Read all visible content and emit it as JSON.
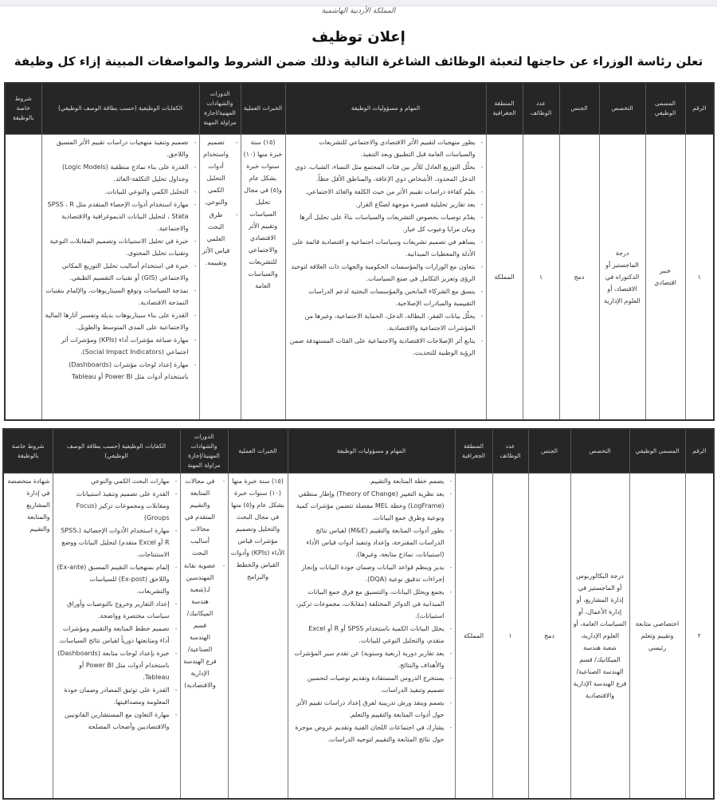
{
  "header": {
    "logo_text": "المملكة الأردنية الهاشمية",
    "title": "إعلان توظيف",
    "subtitle": "تعلن رئاسة الوزراء عن حاجتها لتعبئة الوظائف الشاغرة التالية وذلك ضمن الشروط والمواصفات المبينة إزاء كل وظيفة"
  },
  "table1": {
    "headers": {
      "number": "الرقم",
      "job_title": "المسمى الوظيفي",
      "specialization": "التخصص",
      "gender": "الجنس",
      "count": "عدد الوظائف",
      "region": "المنطقة الجغرافية",
      "duties": "المهام و مسؤوليات الوظيفة",
      "experience": "الخبرات العملية",
      "courses": "الدورات والشهادات المهنية/اجازة مزاولة المهنة",
      "competencies": "الكفايات الوظيفية (حسب بطاقة الوصف الوظيفي)",
      "special": "شروط خاصة بالوظيفة"
    },
    "row": {
      "number": "١",
      "job_title": "خبير اقتصادي",
      "specialization": "درجة الماجستير أو الدكتوراه في الاقتصاد، أو العلوم الإدارية",
      "gender": "دمج",
      "count": "١",
      "region": "المملكة",
      "duties": [
        "يطور منهجيات لتقييم الأثر الاقتصادي والاجتماعي للتشريعات والسياسات العامة قبل التطبيق وبعد التنفيذ.",
        "يحلّل التوزيع العادل للأثر بين فئات المجتمع مثل النساء، الشباب، ذوي الدخل المحدود، الأشخاص ذوي الإعاقة، والمناطق الأقل حظاً.",
        "يقيّم كفاءة دراسات تقييم الأثر من حيث الكلفة والعائد الاجتماعي.",
        "يعد تقارير تحليلية قصيرة موجهة لصنّاع القرار.",
        "يقدّم توصيات بخصوص التشريعات والسياسات بناءً على تحليل أثرها وبيان مزايا وعيوب كل خيار.",
        "يساهم في تصميم تشريعات وسياسات اجتماعية و اقتصادية قائمة على الأدلة والمعطيات الميدانية.",
        "يتعاون مع الوزارات والمؤسسات الحكومية والجهات ذات العلاقة لتوحيد الرؤى وتعزيز التكامل في صنع السياسات.",
        "ينسق مع الشركاء المانحين والمؤسسات البحثية لدعم الدراسات التقييمية والمبادرات الإصلاحية.",
        "يحلّل بيانات الفقر، البطالة، الدخل، الحماية الاجتماعية، وغيرها من المؤشرات الاجتماعية والاقتصادية.",
        "يتابع أثر الإصلاحات الاقتصادية والاجتماعية على الفئات المستهدفة ضمن الرؤية الوطنية للتحديث."
      ],
      "experience": "(١٥) سنة خبرة منها (١٠) سنوات خبرة بشكل عام و(٥) في مجال تحليل السياسات وتقييم الأثر الاقتصادي والاجتماعي للتشريعات والسياسات العامة",
      "courses": [
        "تصميم واستخدام أدوات التحليل الكمي والنوعي.",
        "طرق البحث العلمي قياس الأثر وتقييمه."
      ],
      "competencies": [
        "تصميم وتنفيذ منهجيات دراسات تقييم الأثر المسبق واللاحق.",
        "القدرة على بناء نماذج منطقية (Logic Models) وجداول تحليل التكلفة-العائد.",
        "التحليل الكمي والنوعي للبيانات.",
        "مهارة استخدام أدوات الإحصاء المتقدم مثل SPSS ، R ، Stata لتحليل البيانات الديموغرافية والاقتصادية والاجتماعية.",
        "خبرة في تحليل الاستبيانات وتصميم المقابلات النوعية وتقنيات تحليل المحتوى.",
        "خبرة في استخدام أساليب تحليل التوزيع المكاني والاجتماعي (GIS) أو تقنيات التقسيم الطبقي.",
        "نمذجة السياسات وتوقع السيناريوهات، والإلمام بتقنيات النمذجة الاقتصادية.",
        "القدرة على بناء سيناريوهات بديلة وتفسير آثارها المالية والاجتماعية على المدى المتوسط والطويل.",
        "مهارة صياغة مؤشرات أداء (KPIs) ومؤشرات أثر اجتماعي (Social Impact Indicators).",
        "مهارة إعداد لوحات مؤشرات (Dashboards) باستخدام أدوات مثل Power BI أو Tableau"
      ],
      "special": ""
    }
  },
  "table2": {
    "headers": {
      "number": "الرقم",
      "job_title": "المسمى الوظيفي",
      "specialization": "التخصص",
      "gender": "الجنس",
      "count": "عدد الوظائف",
      "region": "المنطقة الجغرافية",
      "duties": "المهام و مسؤوليات الوظيفة",
      "experience": "الخبرات العملية",
      "courses": "الدورات والشهادات المهنية/إجازة مزاولة المهنة",
      "competencies": "الكفايات الوظيفية (حسب بطاقة الوصف الوظيفي)",
      "special": "شروط خاصة بالوظيفة"
    },
    "row": {
      "number": "٢",
      "job_title": "اختصاصي متابعة وتقييم وتعلم رئيسي",
      "specialization": "درجة البكالوريوس أو الماجستير في إدارة المشاريع، أو إدارة الأعمال، أو السياسات العامة، أو العلوم الإدارية، شعبة هندسة الميكانيك/ قسم الهندسة الصناعية/ فرع الهندسة الإدارية والاقتصادية",
      "gender": "دمج",
      "count": "١",
      "region": "المملكة",
      "duties": [
        "يصمم خطة المتابعة والتقييم.",
        "يعد نظرية التغيير (Theory of Change) وإطار منطقي (LogFrame) وخطة MEL مفصلة تتضمن مؤشرات كمية ونوعية وطرق جمع البيانات.",
        "يطور أدوات المتابعة والتقييم (M&E) لقياس نتائج الدراسات المقترحة، وإعداد وتنفيذ أدوات قياس الأداء (استبيانات، نماذج متابعة، وغيرها).",
        "يدير وينظم قواعد البيانات وضمان جودة البيانات وإنجاز إجراءات تدقيق نوعية (DQA).",
        "يجمع ويحلل البيانات، والتنسيق مع فرق جمع البيانات الميدانية في الدوائر المختلفة (مقابلات، مجموعات تركيز، استبيانات).",
        "يحلل البيانات الكمية باستخدام SPSS أو R أو Excel متقدم، والتحليل النوعي للبيانات.",
        "يعد تقارير دورية (ربعية وسنوية) عن تقدم سير المؤشرات والأهداف والنتائج.",
        "يستخرج الدروس المستفادة وتقديم توصيات لتحسين تصميم وتنفيذ الدراسات.",
        "يصمم وينفذ ورش تدريبية لفرق إعداد دراسات تقييم الأثر حول أدوات المتابعة والتقييم والتعلم.",
        "يشارك في اجتماعات اللجان الفنية وتقديم عروض موجزة حول نتائج المتابعة والتقييم لتوجيه الدراسات."
      ],
      "experience": "(١٥) سنة خبرة منها (١٠) سنوات خبرة بشكل عام و(٥) منها في مجال البحث والتحليل وتصميم مؤشرات قياس الأداء (KPIs) وأدوات القياس والخطط والبرامج",
      "courses": [
        "في مجالات المتابعة والتقييم المتقدم في مجالات أساليب البحث",
        "عضوية نقابة المهندسين لـ(شعبة هندسة الميكانيك/ قسم الهندسة الصناعية/ فرع الهندسة الإدارية والاقتصادية)"
      ],
      "competencies": [
        "مهارات البحث الكمي والنوعي",
        "القدرة على تصميم وتنفيذ استبيانات ومقابلات ومجموعات تركيز (Focus Groups)",
        "مهارة استخدام الأدوات الإحصائية (SPSS، R أو Excel متقدم) لتحليل البيانات ووضع الاستنتاجات.",
        "إلمام بمنهجيات التقييم المسبق (Ex-ante) واللاحق (Ex-post) للسياسات والتشريعات.",
        "إعداد التقارير وخروج بالتوصيات وأوراق سياسات مختصرة وواضحة.",
        "تصميم خطط المتابعة والتقييم ومؤشرات أداء ومتابعتها دورياً لقياس نتائج السياسات.",
        "خبرة بإعداد لوحات متابعة (Dashboards) باستخدام أدوات مثل Power BI أو Tableau.",
        "القدرة على توثيق المصادر وضمان جودة المعلومة ومصداقيتها.",
        "مهارة التعاون مع المستشارين القانونيين والاقتصاديين وأصحاب المصلحة"
      ],
      "special": "شهادة متخصصة في إدارة المشاريع والمتابعة والتقييم"
    }
  }
}
